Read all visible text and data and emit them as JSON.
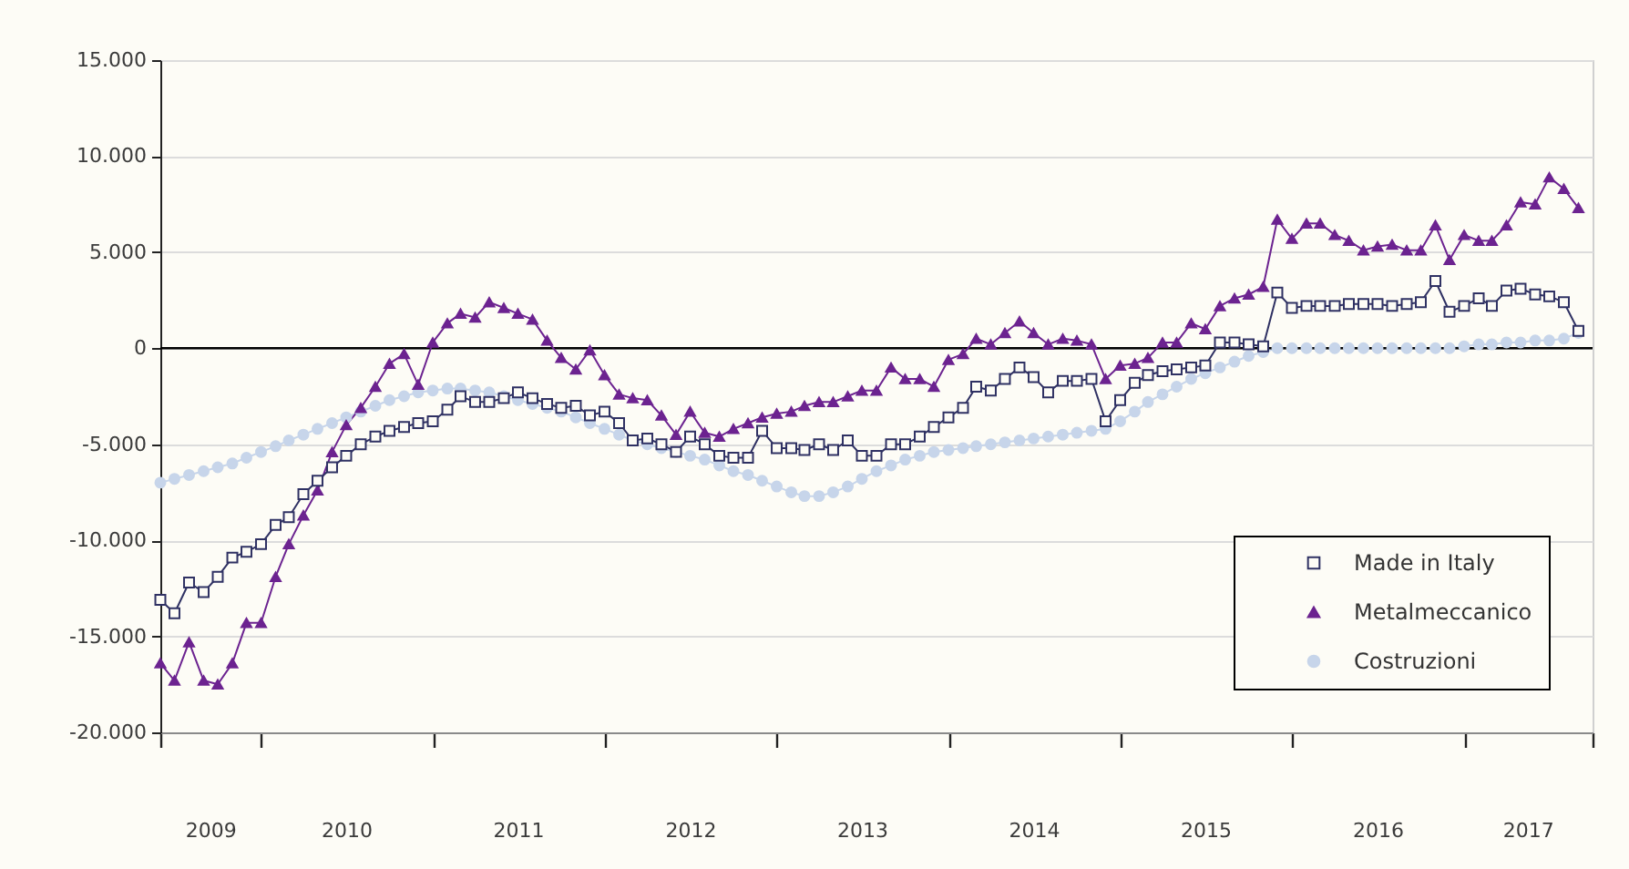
{
  "chart_data": {
    "type": "line",
    "x": [
      "2009-06",
      "2009-07",
      "2009-08",
      "2009-09",
      "2009-10",
      "2009-11",
      "2009-12",
      "2010-01",
      "2010-02",
      "2010-03",
      "2010-04",
      "2010-05",
      "2010-06",
      "2010-07",
      "2010-08",
      "2010-09",
      "2010-10",
      "2010-11",
      "2010-12",
      "2011-01",
      "2011-02",
      "2011-03",
      "2011-04",
      "2011-05",
      "2011-06",
      "2011-07",
      "2011-08",
      "2011-09",
      "2011-10",
      "2011-11",
      "2011-12",
      "2012-01",
      "2012-02",
      "2012-03",
      "2012-04",
      "2012-05",
      "2012-06",
      "2012-07",
      "2012-08",
      "2012-09",
      "2012-10",
      "2012-11",
      "2012-12",
      "2013-01",
      "2013-02",
      "2013-03",
      "2013-04",
      "2013-05",
      "2013-06",
      "2013-07",
      "2013-08",
      "2013-09",
      "2013-10",
      "2013-11",
      "2013-12",
      "2014-01",
      "2014-02",
      "2014-03",
      "2014-04",
      "2014-05",
      "2014-06",
      "2014-07",
      "2014-08",
      "2014-09",
      "2014-10",
      "2014-11",
      "2014-12",
      "2015-01",
      "2015-02",
      "2015-03",
      "2015-04",
      "2015-05",
      "2015-06",
      "2015-07",
      "2015-08",
      "2015-09",
      "2015-10",
      "2015-11",
      "2015-12",
      "2016-01",
      "2016-02",
      "2016-03",
      "2016-04",
      "2016-05",
      "2016-06",
      "2016-07",
      "2016-08",
      "2016-09",
      "2016-10",
      "2016-11",
      "2016-12",
      "2017-01",
      "2017-02",
      "2017-03",
      "2017-04",
      "2017-05",
      "2017-06",
      "2017-07",
      "2017-08",
      "2017-09"
    ],
    "xlim": [
      "2009-06",
      "2017-10"
    ],
    "xticks": [
      {
        "value": "2009-06",
        "label": null
      },
      {
        "value": "2009-09-15",
        "label": "2009"
      },
      {
        "value": "2010-01",
        "label": null
      },
      {
        "value": "2010-07",
        "label": "2010"
      },
      {
        "value": "2011-01",
        "label": null
      },
      {
        "value": "2011-07",
        "label": "2011"
      },
      {
        "value": "2012-01",
        "label": null
      },
      {
        "value": "2012-07",
        "label": "2012"
      },
      {
        "value": "2013-01",
        "label": null
      },
      {
        "value": "2013-07",
        "label": "2013"
      },
      {
        "value": "2014-01",
        "label": null
      },
      {
        "value": "2014-07",
        "label": "2014"
      },
      {
        "value": "2015-01",
        "label": null
      },
      {
        "value": "2015-07",
        "label": "2015"
      },
      {
        "value": "2016-01",
        "label": null
      },
      {
        "value": "2016-07",
        "label": "2016"
      },
      {
        "value": "2017-01",
        "label": null
      },
      {
        "value": "2017-05-16",
        "label": "2017"
      },
      {
        "value": "2017-10",
        "label": null
      }
    ],
    "ylim": [
      -20000,
      15000
    ],
    "yticks": [
      {
        "value": -20000,
        "label": "-20.000"
      },
      {
        "value": -15000,
        "label": "-15.000"
      },
      {
        "value": -10000,
        "label": "-10.000"
      },
      {
        "value": -5000,
        "label": "-5.000"
      },
      0,
      {
        "value": 5000,
        "label": "5.000"
      },
      {
        "value": 10000,
        "label": "10.000"
      },
      {
        "value": 15000,
        "label": "15.000"
      }
    ],
    "grid": "y",
    "legend": "bottom right",
    "ref_lines": [
      {
        "axis": "y",
        "value": 0,
        "color": "#000000"
      }
    ],
    "series": [
      {
        "name": "Made in Italy",
        "color": "#2f3163",
        "marker": "square",
        "values": [
          -13100,
          -13800,
          -12200,
          -12700,
          -11900,
          -10900,
          -10600,
          -10200,
          -9200,
          -8800,
          -7600,
          -6900,
          -6200,
          -5600,
          -5000,
          -4600,
          -4300,
          -4100,
          -3900,
          -3800,
          -3200,
          -2500,
          -2800,
          -2800,
          -2600,
          -2300,
          -2600,
          -2900,
          -3100,
          -3000,
          -3500,
          -3300,
          -3900,
          -4800,
          -4700,
          -5000,
          -5400,
          -4600,
          -5000,
          -5600,
          -5700,
          -5700,
          -4300,
          -5200,
          -5200,
          -5300,
          -5000,
          -5300,
          -4800,
          -5600,
          -5600,
          -5000,
          -5000,
          -4600,
          -4100,
          -3600,
          -3100,
          -2000,
          -2200,
          -1600,
          -1000,
          -1500,
          -2300,
          -1700,
          -1700,
          -1600,
          -3800,
          -2700,
          -1800,
          -1400,
          -1200,
          -1100,
          -1000,
          -900,
          300,
          300,
          200,
          100,
          2900,
          2100,
          2200,
          2200,
          2200,
          2300,
          2300,
          2300,
          2200,
          2300,
          2400,
          3500,
          1900,
          2200,
          2600,
          2200,
          3000,
          3100,
          2800,
          2700,
          2400,
          900
        ]
      },
      {
        "name": "Metalmeccanico",
        "color": "#6c2390",
        "marker": "triangle",
        "values": [
          -16400,
          -17300,
          -15300,
          -17300,
          -17500,
          -16400,
          -14300,
          -14300,
          -11900,
          -10200,
          -8700,
          -7400,
          -5400,
          -4000,
          -3100,
          -2000,
          -800,
          -300,
          -1900,
          300,
          1300,
          1800,
          1600,
          2400,
          2100,
          1800,
          1500,
          400,
          -500,
          -1100,
          -100,
          -1400,
          -2400,
          -2600,
          -2700,
          -3500,
          -4500,
          -3300,
          -4400,
          -4600,
          -4200,
          -3900,
          -3600,
          -3400,
          -3300,
          -3000,
          -2800,
          -2800,
          -2500,
          -2200,
          -2200,
          -1000,
          -1600,
          -1600,
          -2000,
          -600,
          -300,
          500,
          200,
          800,
          1400,
          800,
          200,
          500,
          400,
          200,
          -1600,
          -900,
          -800,
          -500,
          300,
          300,
          1300,
          1000,
          2200,
          2600,
          2800,
          3200,
          6700,
          5700,
          6500,
          6500,
          5900,
          5600,
          5100,
          5300,
          5400,
          5100,
          5100,
          6400,
          4600,
          5900,
          5600,
          5600,
          6400,
          7600,
          7500,
          8900,
          8300,
          7300
        ]
      },
      {
        "name": "Costruzioni",
        "color": "#c7d5ea",
        "marker": "circle",
        "values": [
          -7000,
          -6800,
          -6600,
          -6400,
          -6200,
          -6000,
          -5700,
          -5400,
          -5100,
          -4800,
          -4500,
          -4200,
          -3900,
          -3600,
          -3300,
          -3000,
          -2700,
          -2500,
          -2300,
          -2200,
          -2100,
          -2100,
          -2200,
          -2300,
          -2500,
          -2700,
          -2900,
          -3100,
          -3300,
          -3600,
          -3900,
          -4200,
          -4500,
          -4800,
          -5000,
          -5200,
          -5400,
          -5600,
          -5800,
          -6100,
          -6400,
          -6600,
          -6900,
          -7200,
          -7500,
          -7700,
          -7700,
          -7500,
          -7200,
          -6800,
          -6400,
          -6100,
          -5800,
          -5600,
          -5400,
          -5300,
          -5200,
          -5100,
          -5000,
          -4900,
          -4800,
          -4700,
          -4600,
          -4500,
          -4400,
          -4300,
          -4200,
          -3800,
          -3300,
          -2800,
          -2400,
          -2000,
          -1600,
          -1300,
          -1000,
          -700,
          -400,
          -200,
          0,
          0,
          0,
          0,
          0,
          0,
          0,
          0,
          0,
          0,
          0,
          0,
          0,
          100,
          200,
          200,
          300,
          300,
          400,
          400,
          500,
          800
        ]
      }
    ]
  }
}
